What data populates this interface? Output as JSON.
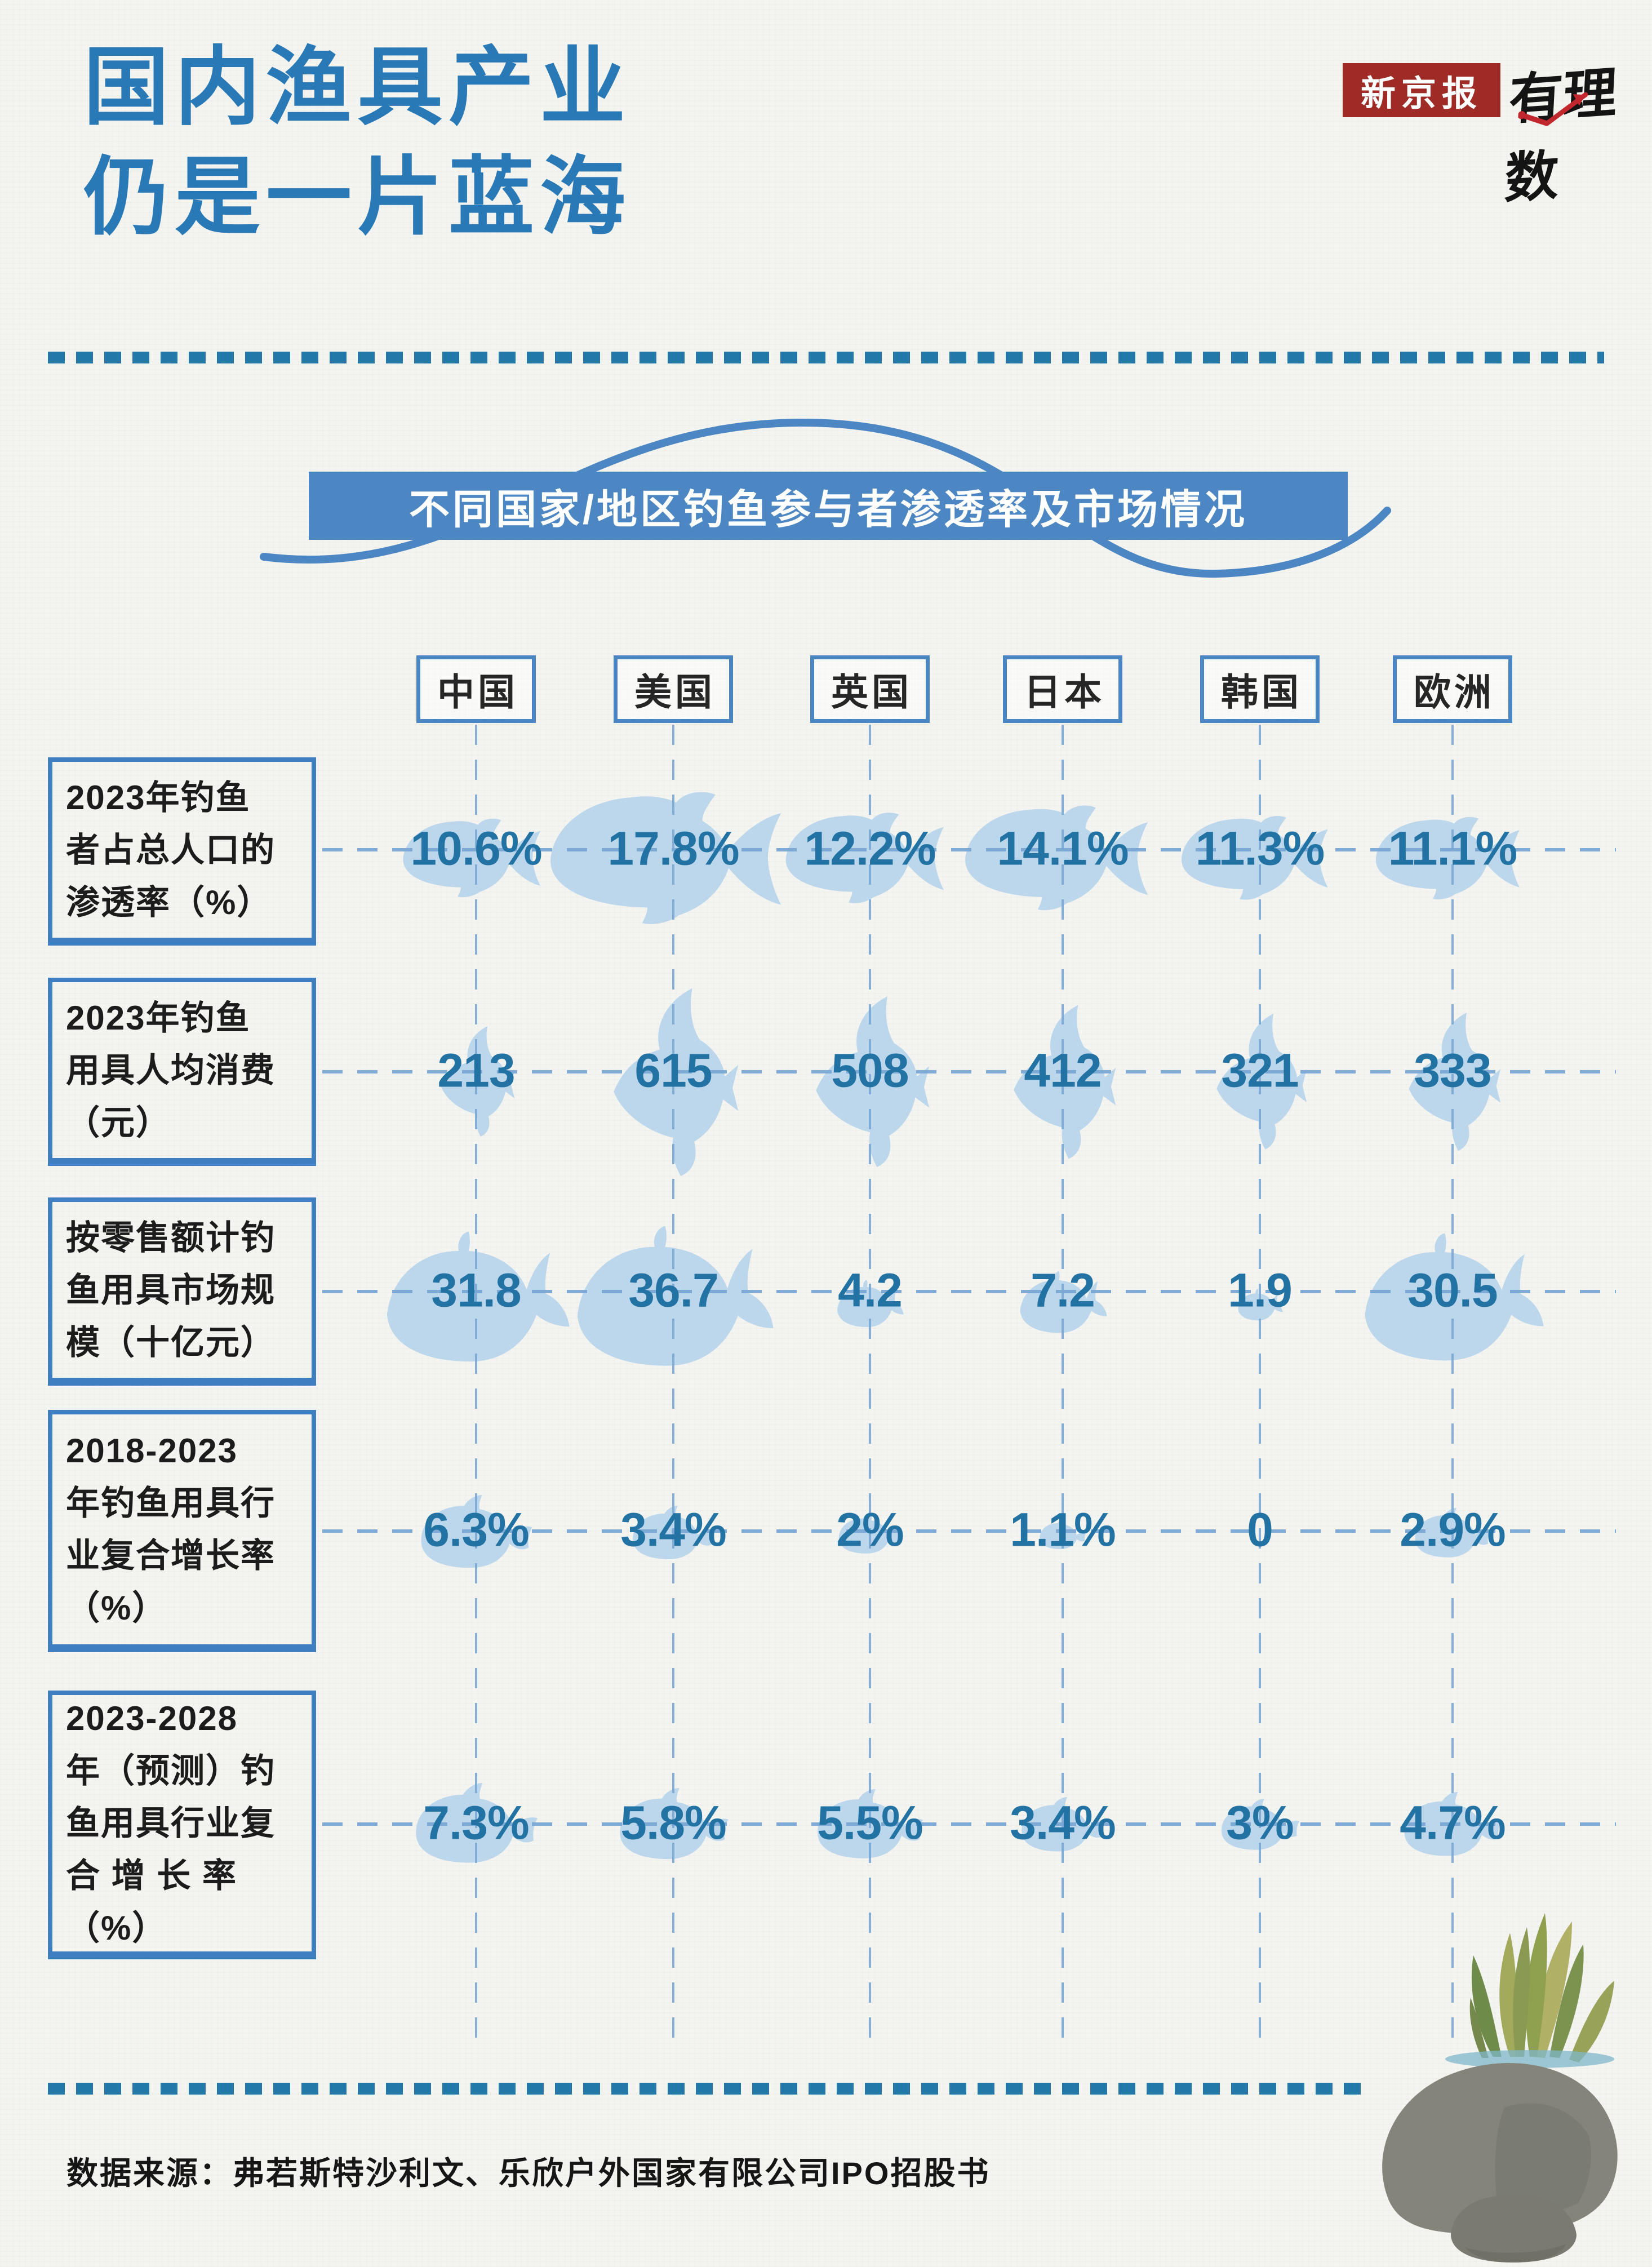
{
  "title": {
    "line1": "国内渔具产业",
    "line2": "仍是一片蓝海"
  },
  "brand": {
    "newspaper": "新京报",
    "column": "有理数"
  },
  "banner": {
    "text": "不同国家/地区钓鱼参与者渗透率及市场情况"
  },
  "source": {
    "text": "数据来源：弗若斯特沙利文、乐欣户外国家有限公司IPO招股书"
  },
  "colors": {
    "title_blue": "#2A79B7",
    "banner_blue": "#4C87C3",
    "divider_blue": "#2178A9",
    "grid_light_blue": "#7AA7D4",
    "fish_fill": "#BCD7EC",
    "value_blue": "#2273A3",
    "newspaper_red": "#9E2B26",
    "logo_arrow_red": "#C1272D",
    "paper": "#F4F4F1"
  },
  "chart_data": {
    "type": "table",
    "title": "不同国家/地区钓鱼参与者渗透率及市场情况",
    "grid": "dashed",
    "legend_position": "none",
    "columns": [
      "中国",
      "美国",
      "英国",
      "日本",
      "韩国",
      "欧洲"
    ],
    "rows": [
      {
        "label": "2023年钓鱼者占总人口的渗透率（%）",
        "label_lines": [
          "2023年钓鱼",
          "者占总人口的",
          "渗透率（%）"
        ],
        "display": [
          "10.6%",
          "17.8%",
          "12.2%",
          "14.1%",
          "11.3%",
          "11.1%"
        ],
        "values": [
          10.6,
          17.8,
          12.2,
          14.1,
          11.3,
          11.1
        ],
        "unit": "%",
        "fish": "round"
      },
      {
        "label": "2023年钓鱼用具人均消费（元）",
        "label_lines": [
          "2023年钓鱼",
          "用具人均消费",
          "（元）"
        ],
        "display": [
          "213",
          "615",
          "508",
          "412",
          "321",
          "333"
        ],
        "values": [
          213,
          615,
          508,
          412,
          321,
          333
        ],
        "unit": "元",
        "fish": "angel"
      },
      {
        "label": "按零售额计钓鱼用具市场规模（十亿元）",
        "label_lines": [
          "按零售额计钓",
          "鱼用具市场规",
          "模（十亿元）"
        ],
        "display": [
          "31.8",
          "36.7",
          "4.2",
          "7.2",
          "1.9",
          "30.5"
        ],
        "values": [
          31.8,
          36.7,
          4.2,
          7.2,
          1.9,
          30.5
        ],
        "unit": "十亿元",
        "fish": "whale"
      },
      {
        "label": "2018-2023年钓鱼用具行业复合增长率（%）",
        "label_lines": [
          "2018-2023",
          "年钓鱼用具行",
          "业复合增长率",
          "（%）"
        ],
        "display": [
          "6.3%",
          "3.4%",
          "2%",
          "1.1%",
          "0",
          "2.9%"
        ],
        "values": [
          6.3,
          3.4,
          2,
          1.1,
          0,
          2.9
        ],
        "unit": "%",
        "fish": "small"
      },
      {
        "label": "2023-2028年（预测）钓鱼用具行业复合增长率（%）",
        "label_lines": [
          "2023-2028",
          "年（预测）钓",
          "鱼用具行业复",
          "合 增 长 率",
          "（%）"
        ],
        "display": [
          "7.3%",
          "5.8%",
          "5.5%",
          "3.4%",
          "3%",
          "4.7%"
        ],
        "values": [
          7.3,
          5.8,
          5.5,
          3.4,
          3,
          4.7
        ],
        "unit": "%",
        "fish": "small"
      }
    ]
  }
}
